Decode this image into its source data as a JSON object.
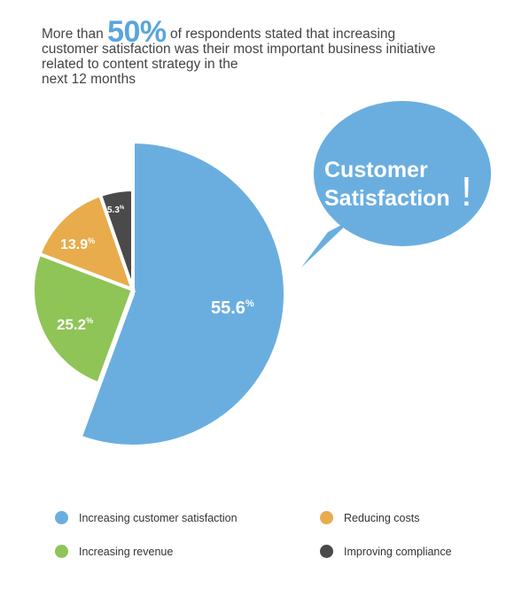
{
  "headline": {
    "prefix": "More than ",
    "highlight": "50%",
    "line1_rest": " of respondents stated that increasing",
    "line2": "customer satisfaction was their most important business initiative",
    "line3": "related to content strategy in the",
    "line4": "next 12 months"
  },
  "callout": {
    "line1": "Customer",
    "line2": "Satisfaction",
    "mark": "!"
  },
  "colors": {
    "customer_satisfaction": "#6aaee0",
    "revenue": "#8fc457",
    "costs": "#e8ac4c",
    "compliance": "#4a4a4a",
    "headline_accent": "#5aa5dc"
  },
  "chart_data": {
    "type": "pie",
    "slices": [
      {
        "name": "Increasing customer satisfaction",
        "value": 55.6,
        "label": "55.6",
        "color": "#6aaee0",
        "exploded": true
      },
      {
        "name": "Increasing revenue",
        "value": 25.2,
        "label": "25.2",
        "color": "#8fc457"
      },
      {
        "name": "Reducing costs",
        "value": 13.9,
        "label": "13.9",
        "color": "#e8ac4c"
      },
      {
        "name": "Improving compliance",
        "value": 5.3,
        "label": "5.3",
        "color": "#4a4a4a"
      }
    ],
    "unit_symbol": "%",
    "legend": {
      "placement": "bottom",
      "items": [
        {
          "label": "Increasing customer satisfaction",
          "color": "#6aaee0"
        },
        {
          "label": "Reducing costs",
          "color": "#e8ac4c"
        },
        {
          "label": "Increasing revenue",
          "color": "#8fc457"
        },
        {
          "label": "Improving compliance",
          "color": "#4a4a4a"
        }
      ]
    }
  }
}
